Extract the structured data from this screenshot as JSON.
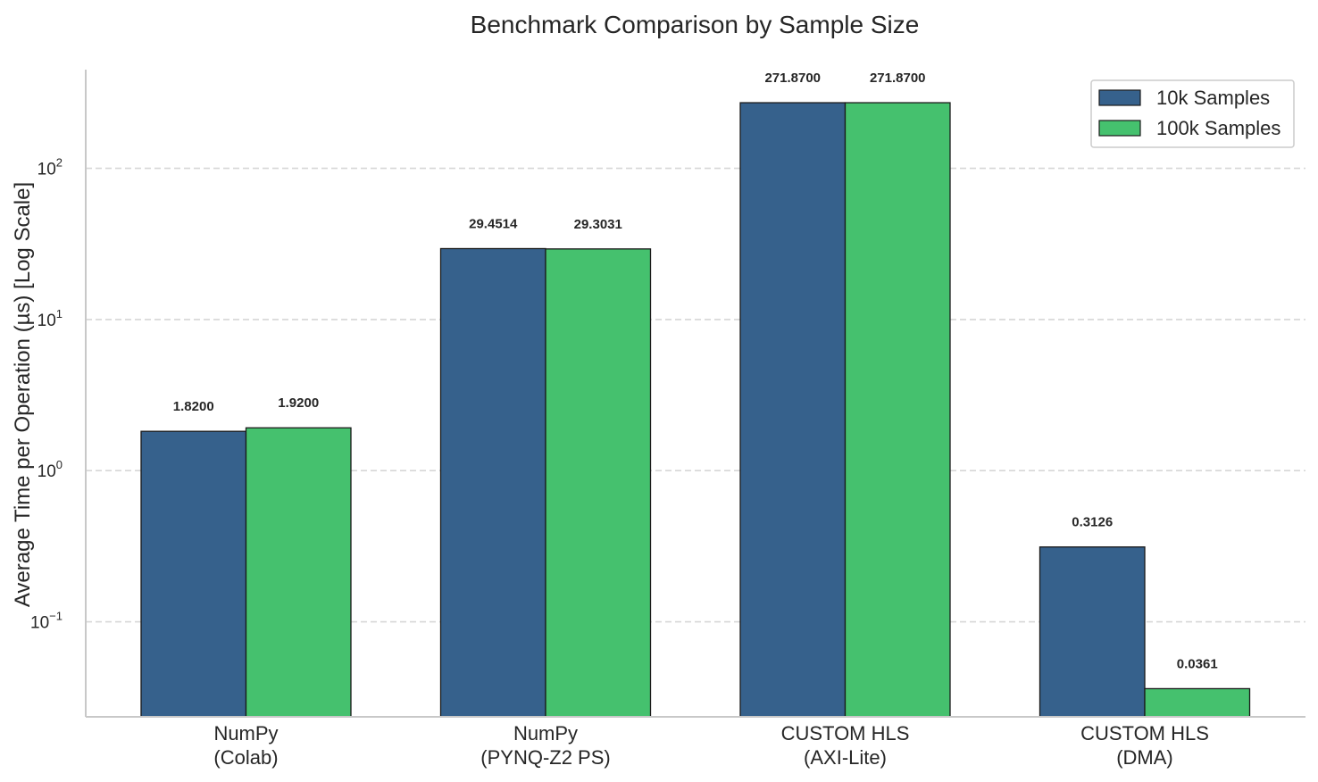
{
  "chart_data": {
    "type": "bar",
    "title": "Benchmark Comparison by Sample Size",
    "ylabel": "Average Time per Operation (µs) [Log Scale]",
    "xlabel": "",
    "yscale": "log",
    "ylim": [
      0.0235,
      450
    ],
    "yticks": [
      {
        "base": "10",
        "exp": "2",
        "value": 100
      },
      {
        "base": "10",
        "exp": "1",
        "value": 10
      },
      {
        "base": "10",
        "exp": "0",
        "value": 1
      },
      {
        "base": "10",
        "exp": "−1",
        "value": 0.1
      }
    ],
    "grid": "horizontal dashed",
    "legend_position": "top-right",
    "categories": [
      [
        "NumPy",
        "(Colab)"
      ],
      [
        "NumPy",
        "(PYNQ-Z2 PS)"
      ],
      [
        "CUSTOM HLS",
        "(AXI-Lite)"
      ],
      [
        "CUSTOM HLS",
        "(DMA)"
      ]
    ],
    "series": [
      {
        "name": "10k Samples",
        "color": "#36618c",
        "values": [
          1.82,
          29.4514,
          271.87,
          0.3126
        ],
        "labels": [
          "1.8200",
          "29.4514",
          "271.8700",
          "0.3126"
        ]
      },
      {
        "name": "100k Samples",
        "color": "#45c16e",
        "values": [
          1.92,
          29.3031,
          271.87,
          0.0361
        ],
        "labels": [
          "1.9200",
          "29.3031",
          "271.8700",
          "0.0361"
        ]
      }
    ]
  }
}
